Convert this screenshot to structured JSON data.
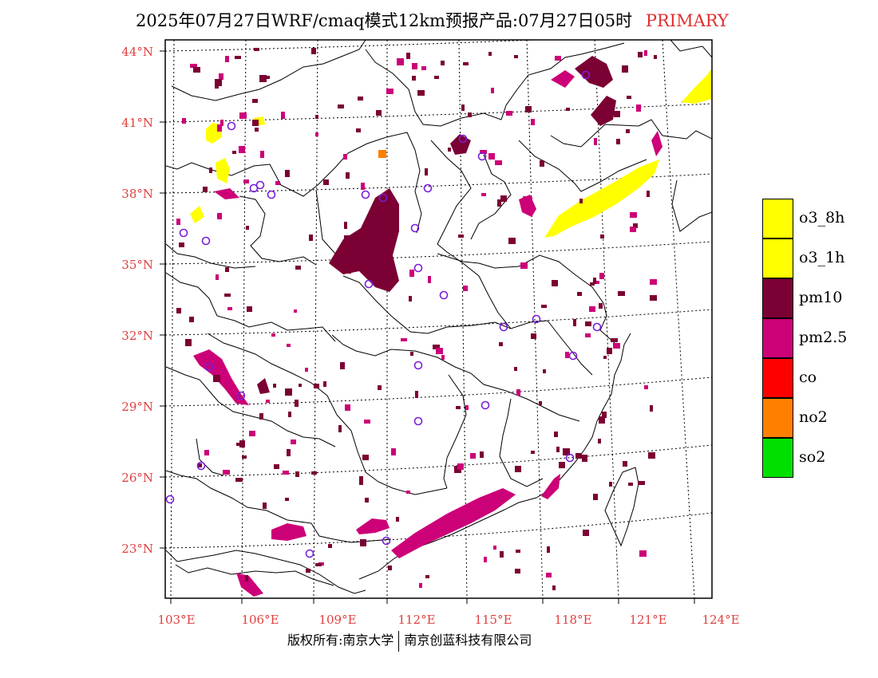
{
  "title": {
    "text": "2025年07月27日WRF/cmaq模式12km预报产品:07月27日05时",
    "tag": "PRIMARY"
  },
  "map": {
    "lat_labels": [
      "44°N",
      "41°N",
      "38°N",
      "35°N",
      "32°N",
      "29°N",
      "26°N",
      "23°N"
    ],
    "lon_labels": [
      "103°E",
      "106°E",
      "109°E",
      "112°E",
      "115°E",
      "118°E",
      "121°E",
      "124°E"
    ],
    "colors": {
      "o3_8h": "#ffff00",
      "o3_1h": "#ffff00",
      "pm10": "#7b0033",
      "pm25": "#cc0077",
      "co": "#ff0000",
      "no2": "#ff8000",
      "so2": "#00e000",
      "station": "#7a1ed8",
      "axis_label": "#e04040"
    }
  },
  "legend": [
    {
      "label": "o3_8h",
      "color": "#ffff00"
    },
    {
      "label": "o3_1h",
      "color": "#ffff00"
    },
    {
      "label": "pm10",
      "color": "#7b0033"
    },
    {
      "label": "pm2.5",
      "color": "#cc0077"
    },
    {
      "label": "co",
      "color": "#ff0000"
    },
    {
      "label": "no2",
      "color": "#ff8000"
    },
    {
      "label": "so2",
      "color": "#00e000"
    }
  ],
  "footer": {
    "left": "版权所有:南京大学",
    "right": "南京创蓝科技有限公司"
  }
}
